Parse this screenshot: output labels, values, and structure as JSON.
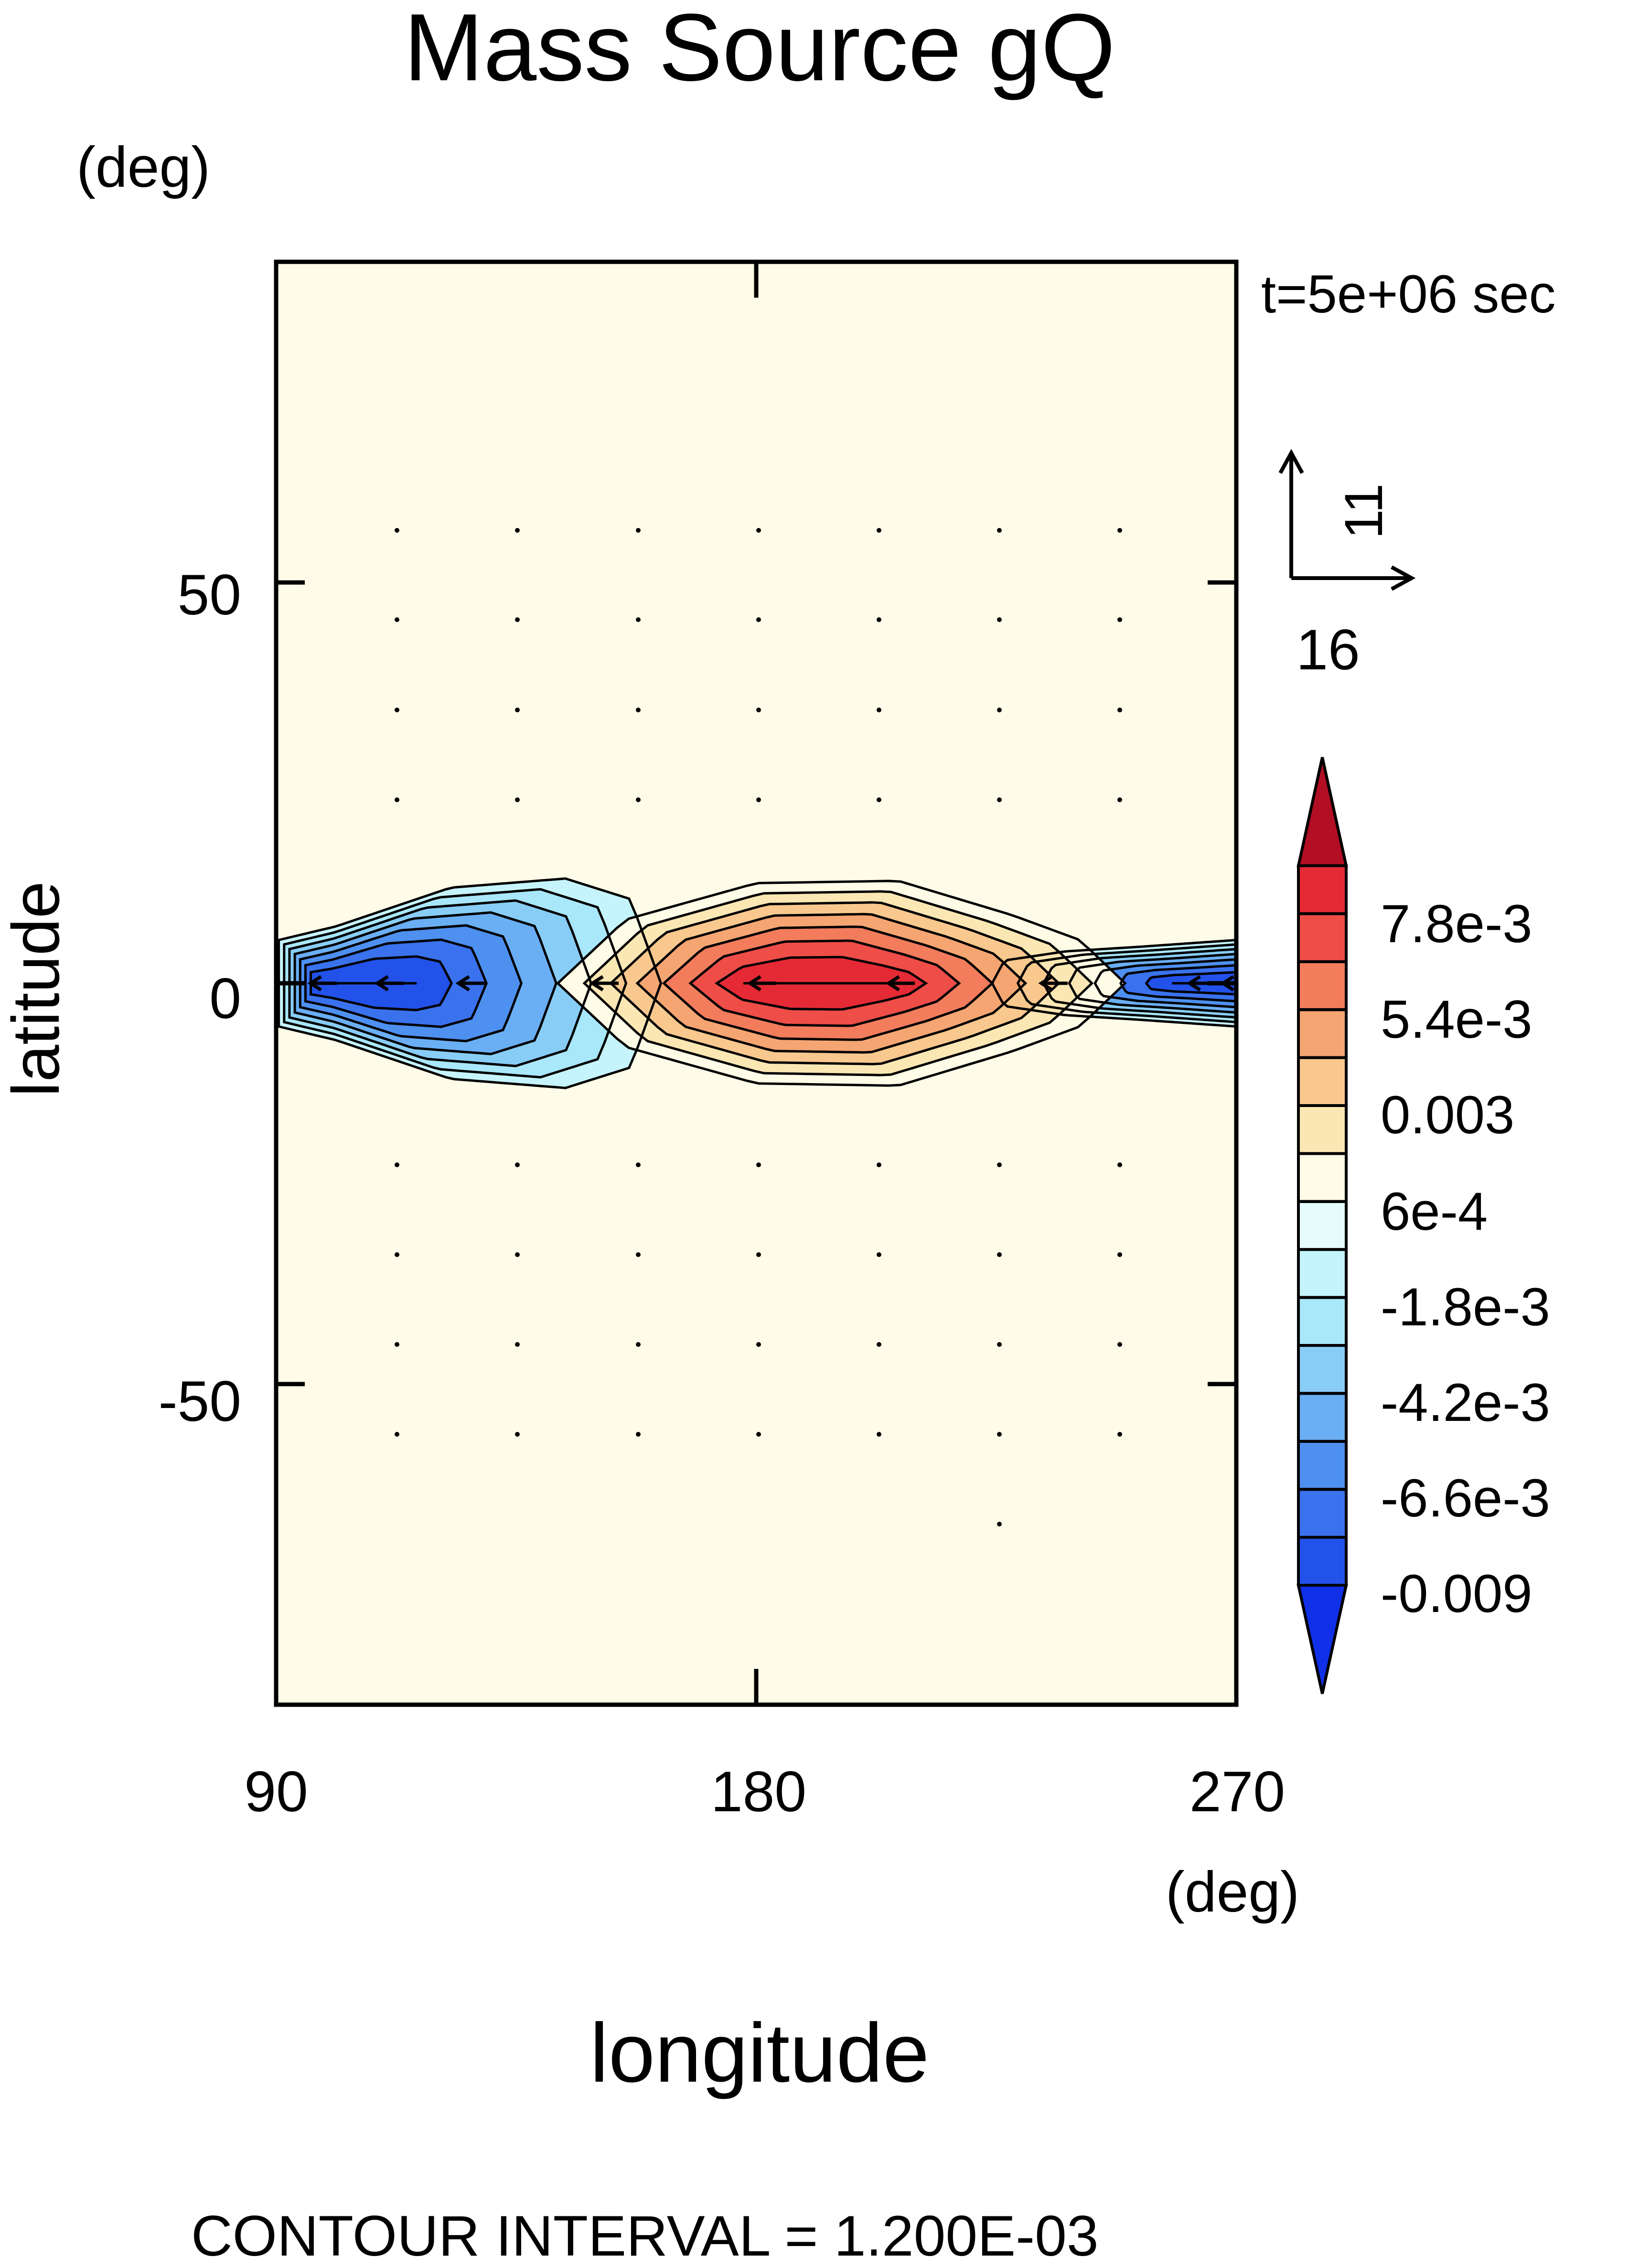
{
  "chart_data": {
    "type": "contour",
    "title": "Mass Source gQ",
    "xlabel": "longitude",
    "ylabel": "latitude",
    "x_unit": "(deg)",
    "y_unit": "(deg)",
    "time_label": "t=5e+06 sec",
    "xlim": [
      90,
      270
    ],
    "ylim": [
      -90,
      90
    ],
    "xticks": [
      90,
      180,
      270
    ],
    "yticks": [
      50,
      0,
      -50
    ],
    "contour_interval_label": "CONTOUR INTERVAL = 1.200E-03",
    "contour_interval": 0.0012,
    "colorbar": {
      "levels": [
        -0.009,
        -0.0078,
        -0.0066,
        -0.0054,
        -0.0042,
        -0.003,
        -0.0018,
        -0.0006,
        0.0006,
        0.0018,
        0.003,
        0.0042,
        0.0054,
        0.0066,
        0.0078,
        0.009
      ],
      "labels": [
        "-0.009",
        "-6.6e-3",
        "-4.2e-3",
        "-1.8e-3",
        "6e-4",
        "0.003",
        "5.4e-3",
        "7.8e-3"
      ],
      "label_levels": [
        -0.009,
        -0.0066,
        -0.0042,
        -0.0018,
        0.0006,
        0.003,
        0.0054,
        0.0078
      ],
      "colors": [
        "#1030e8",
        "#2352ea",
        "#3a72ee",
        "#4e90f0",
        "#6aaef4",
        "#88cdf6",
        "#a9e7fa",
        "#c6f4fc",
        "#e6fbfc",
        "#fefbe6",
        "#fbe7b4",
        "#f8c88e",
        "#f5a572",
        "#f27c5c",
        "#ee4d48",
        "#e52a36",
        "#b20e24"
      ]
    },
    "field_centers": [
      {
        "name": "negative-west",
        "lon": 100,
        "lat": 0,
        "peak": -0.009
      },
      {
        "name": "negative-east",
        "lon": 270,
        "lat": 0,
        "peak": -0.009
      },
      {
        "name": "positive-center",
        "lon": 190,
        "lat": 0,
        "peak": 0.009
      }
    ],
    "vector_reference": {
      "x_label": "16",
      "y_label": "11"
    }
  }
}
